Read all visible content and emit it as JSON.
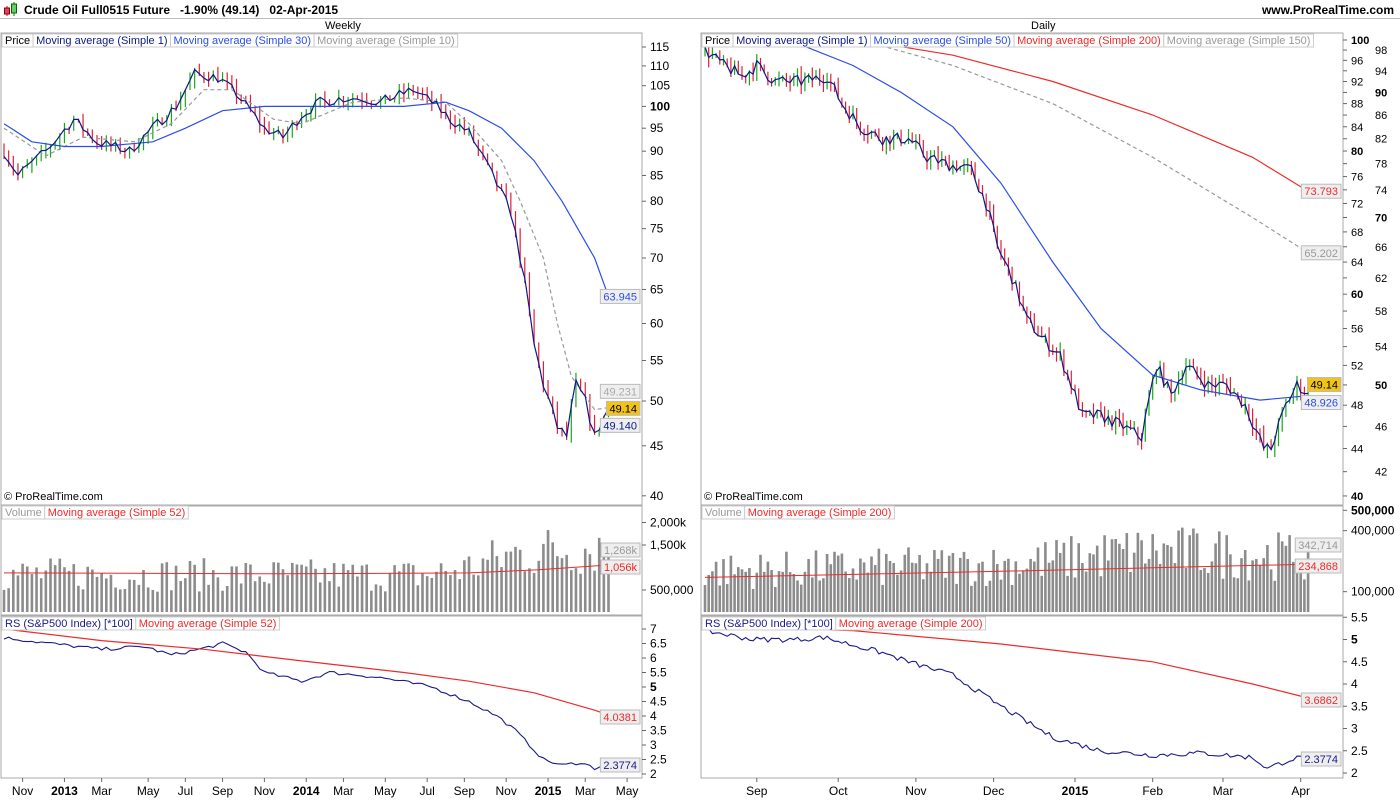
{
  "header": {
    "title": "Crude Oil Full0515 Future   -1.90% (49.14)   02-Apr-2015",
    "site": "www.ProRealTime.com"
  },
  "colors": {
    "up": "#1aa81a",
    "down": "#e0203a",
    "ma1": "#0a1a8a",
    "ma_blue": "#2a4ee8",
    "ma_red": "#ee2a2a",
    "ma_grey": "#999999",
    "vol": "#8c8c8c",
    "price_tag": "#f2c318"
  },
  "copyright": "© ProRealTime.com",
  "chart_data": [
    {
      "type": "line",
      "title": "Weekly",
      "scale": "log",
      "legend": [
        "Price",
        "Moving average (Simple 1)",
        "Moving average (Simple 30)",
        "Moving average (Simple 10)"
      ],
      "yticks": [
        115,
        110,
        105,
        100,
        95,
        90,
        85,
        80,
        75,
        70,
        65,
        60,
        55,
        50,
        45,
        40
      ],
      "xticks": [
        [
          "Nov",
          4
        ],
        [
          "2013",
          13
        ],
        [
          "Mar",
          21
        ],
        [
          "May",
          31
        ],
        [
          "Jul",
          39
        ],
        [
          "Sep",
          47
        ],
        [
          "Nov",
          56
        ],
        [
          "2014",
          65
        ],
        [
          "Mar",
          73
        ],
        [
          "May",
          82
        ],
        [
          "Jul",
          91
        ],
        [
          "Sep",
          99
        ],
        [
          "Nov",
          108
        ],
        [
          "2015",
          117
        ],
        [
          "Mar",
          125
        ],
        [
          "May",
          134
        ]
      ],
      "n": 131,
      "close": [
        [
          0,
          90
        ],
        [
          3,
          85
        ],
        [
          9,
          90
        ],
        [
          15,
          97
        ],
        [
          20,
          92
        ],
        [
          27,
          90
        ],
        [
          32,
          95
        ],
        [
          37,
          100
        ],
        [
          41,
          108
        ],
        [
          46,
          107
        ],
        [
          50,
          103
        ],
        [
          56,
          95
        ],
        [
          60,
          93
        ],
        [
          64,
          98
        ],
        [
          68,
          101
        ],
        [
          73,
          102
        ],
        [
          77,
          102
        ],
        [
          81,
          101
        ],
        [
          88,
          104
        ],
        [
          92,
          101
        ],
        [
          96,
          97
        ],
        [
          100,
          94
        ],
        [
          105,
          85
        ],
        [
          109,
          78
        ],
        [
          112,
          66
        ],
        [
          114,
          57
        ],
        [
          116,
          52
        ],
        [
          119,
          47
        ],
        [
          121,
          46
        ],
        [
          123,
          52
        ],
        [
          125,
          50
        ],
        [
          127,
          46
        ],
        [
          130,
          49.14
        ]
      ],
      "ma30": [
        [
          0,
          96
        ],
        [
          6,
          92
        ],
        [
          13,
          91
        ],
        [
          21,
          91
        ],
        [
          32,
          92
        ],
        [
          39,
          95
        ],
        [
          47,
          99
        ],
        [
          56,
          100
        ],
        [
          64,
          100
        ],
        [
          75,
          100
        ],
        [
          86,
          100
        ],
        [
          95,
          101
        ],
        [
          100,
          99
        ],
        [
          107,
          95
        ],
        [
          114,
          88
        ],
        [
          120,
          80
        ],
        [
          127,
          70
        ],
        [
          130,
          63.945
        ]
      ],
      "ma10": [
        [
          0,
          95
        ],
        [
          9,
          89
        ],
        [
          17,
          93
        ],
        [
          28,
          92
        ],
        [
          36,
          96
        ],
        [
          43,
          104
        ],
        [
          49,
          104
        ],
        [
          58,
          97
        ],
        [
          64,
          96
        ],
        [
          75,
          101
        ],
        [
          86,
          102
        ],
        [
          95,
          101
        ],
        [
          100,
          96
        ],
        [
          107,
          88
        ],
        [
          111,
          80
        ],
        [
          116,
          70
        ],
        [
          119,
          60
        ],
        [
          122,
          53
        ],
        [
          127,
          49
        ],
        [
          130,
          49.231
        ]
      ],
      "last": {
        "price": "49.14",
        "ma30": "63.945",
        "ma10": "49.231",
        "ma1": "49.140"
      },
      "volume": {
        "legend": [
          "Volume",
          "Moving average (Simple 52)"
        ],
        "yticks": [
          "2,000k",
          "1,500k",
          "500,000"
        ],
        "ytick_values": [
          2000000,
          1500000,
          500000
        ],
        "base": [
          [
            0,
            850000
          ],
          [
            90,
            820000
          ],
          [
            100,
            1000000
          ],
          [
            110,
            1300000
          ],
          [
            130,
            1500000
          ]
        ],
        "ma": [
          [
            0,
            880000
          ],
          [
            60,
            860000
          ],
          [
            100,
            880000
          ],
          [
            115,
            950000
          ],
          [
            130,
            1056000
          ]
        ],
        "last": "1,268k",
        "last_ma": "1,056k"
      },
      "rs": {
        "legend": [
          "RS (S&P500 Index) [*100]",
          "Moving average (Simple 52)"
        ],
        "yticks": [
          7,
          6.5,
          6,
          5.5,
          5,
          4.5,
          4,
          3.5,
          3,
          2.5,
          2
        ],
        "line": [
          [
            0,
            6.7
          ],
          [
            10,
            6.5
          ],
          [
            21,
            6.3
          ],
          [
            30,
            6.4
          ],
          [
            36,
            6.1
          ],
          [
            42,
            6.3
          ],
          [
            47,
            6.5
          ],
          [
            52,
            6.2
          ],
          [
            56,
            5.5
          ],
          [
            64,
            5.2
          ],
          [
            70,
            5.5
          ],
          [
            77,
            5.4
          ],
          [
            82,
            5.3
          ],
          [
            92,
            5.0
          ],
          [
            100,
            4.5
          ],
          [
            106,
            4.0
          ],
          [
            110,
            3.5
          ],
          [
            116,
            2.5
          ],
          [
            120,
            2.3
          ],
          [
            124,
            2.4
          ],
          [
            127,
            2.2
          ],
          [
            130,
            2.3774
          ]
        ],
        "ma": [
          [
            0,
            7.0
          ],
          [
            21,
            6.6
          ],
          [
            43,
            6.3
          ],
          [
            64,
            5.9
          ],
          [
            86,
            5.5
          ],
          [
            100,
            5.2
          ],
          [
            114,
            4.8
          ],
          [
            127,
            4.2
          ],
          [
            130,
            4.0381
          ]
        ],
        "last": "2.3774",
        "last_ma": "4.0381"
      }
    },
    {
      "type": "line",
      "title": "Daily",
      "scale": "log",
      "legend": [
        "Price",
        "Moving average (Simple 1)",
        "Moving average (Simple 50)",
        "Moving average (Simple 200)",
        "Moving average (Simple 150)"
      ],
      "yticks": [
        100,
        98,
        96,
        94,
        92,
        90,
        88,
        86,
        84,
        82,
        80,
        78,
        76,
        74,
        72,
        70,
        68,
        66,
        64,
        62,
        60,
        58,
        56,
        54,
        52,
        50,
        48,
        46,
        44,
        42,
        40
      ],
      "xticks": [
        [
          "Sep",
          14
        ],
        [
          "Oct",
          36
        ],
        [
          "Nov",
          57
        ],
        [
          "Dec",
          78
        ],
        [
          "2015",
          100
        ],
        [
          "Feb",
          121
        ],
        [
          "Mar",
          140
        ],
        [
          "Apr",
          161
        ]
      ],
      "n": 164,
      "close": [
        [
          0,
          98
        ],
        [
          5,
          95
        ],
        [
          10,
          93
        ],
        [
          14,
          95
        ],
        [
          19,
          92
        ],
        [
          26,
          92
        ],
        [
          33,
          93
        ],
        [
          37,
          88
        ],
        [
          42,
          84
        ],
        [
          48,
          82
        ],
        [
          55,
          82
        ],
        [
          60,
          79
        ],
        [
          65,
          78
        ],
        [
          72,
          77
        ],
        [
          76,
          72
        ],
        [
          79,
          66
        ],
        [
          83,
          62
        ],
        [
          87,
          57
        ],
        [
          91,
          55
        ],
        [
          96,
          53
        ],
        [
          102,
          47
        ],
        [
          107,
          47
        ],
        [
          113,
          46
        ],
        [
          118,
          45
        ],
        [
          122,
          52
        ],
        [
          126,
          49
        ],
        [
          130,
          52
        ],
        [
          136,
          50
        ],
        [
          141,
          50
        ],
        [
          146,
          48
        ],
        [
          151,
          44
        ],
        [
          153,
          44
        ],
        [
          157,
          48
        ],
        [
          160,
          50
        ],
        [
          163,
          49.14
        ]
      ],
      "ma50": [
        [
          0,
          101
        ],
        [
          15,
          101
        ],
        [
          26,
          99
        ],
        [
          40,
          95
        ],
        [
          53,
          90
        ],
        [
          67,
          84
        ],
        [
          80,
          75
        ],
        [
          94,
          64
        ],
        [
          107,
          56
        ],
        [
          121,
          51
        ],
        [
          134,
          49.5
        ],
        [
          150,
          48.5
        ],
        [
          163,
          48.926
        ]
      ],
      "ma200": [
        [
          42,
          100
        ],
        [
          67,
          97
        ],
        [
          94,
          92
        ],
        [
          121,
          86
        ],
        [
          148,
          79
        ],
        [
          163,
          73.793
        ]
      ],
      "ma150": [
        [
          42,
          100
        ],
        [
          67,
          95
        ],
        [
          94,
          88
        ],
        [
          121,
          79
        ],
        [
          148,
          70
        ],
        [
          163,
          65.202
        ]
      ],
      "last": {
        "price": "49.14",
        "ma50": "48.926",
        "ma200": "73.793",
        "ma150": "65.202"
      },
      "volume": {
        "legend": [
          "Volume",
          "Moving average (Simple 200)"
        ],
        "yticks": [
          "500,000",
          "400,000",
          "100,000"
        ],
        "ytick_values": [
          500000,
          400000,
          100000
        ],
        "base": [
          [
            0,
            200000
          ],
          [
            80,
            230000
          ],
          [
            120,
            300000
          ],
          [
            163,
            270000
          ]
        ],
        "ma": [
          [
            0,
            170000
          ],
          [
            80,
            200000
          ],
          [
            163,
            234868
          ]
        ],
        "last": "342,714",
        "last_ma": "234,868"
      },
      "rs": {
        "legend": [
          "RS (S&P500 Index) [*100]",
          "Moving average (Simple 200)"
        ],
        "yticks": [
          5.5,
          5,
          4.5,
          4,
          3.5,
          3,
          2.5,
          2
        ],
        "line": [
          [
            0,
            5.2
          ],
          [
            13,
            5.0
          ],
          [
            25,
            5.0
          ],
          [
            32,
            5.05
          ],
          [
            48,
            4.7
          ],
          [
            55,
            4.5
          ],
          [
            67,
            4.2
          ],
          [
            80,
            3.5
          ],
          [
            94,
            2.8
          ],
          [
            107,
            2.5
          ],
          [
            121,
            2.4
          ],
          [
            134,
            2.45
          ],
          [
            148,
            2.35
          ],
          [
            152,
            2.1
          ],
          [
            158,
            2.3
          ],
          [
            163,
            2.3774
          ]
        ],
        "ma": [
          [
            0,
            5.3
          ],
          [
            40,
            5.2
          ],
          [
            80,
            4.9
          ],
          [
            121,
            4.5
          ],
          [
            148,
            4.0
          ],
          [
            163,
            3.6862
          ]
        ],
        "last": "2.3774",
        "last_ma": "3.6862"
      }
    }
  ]
}
